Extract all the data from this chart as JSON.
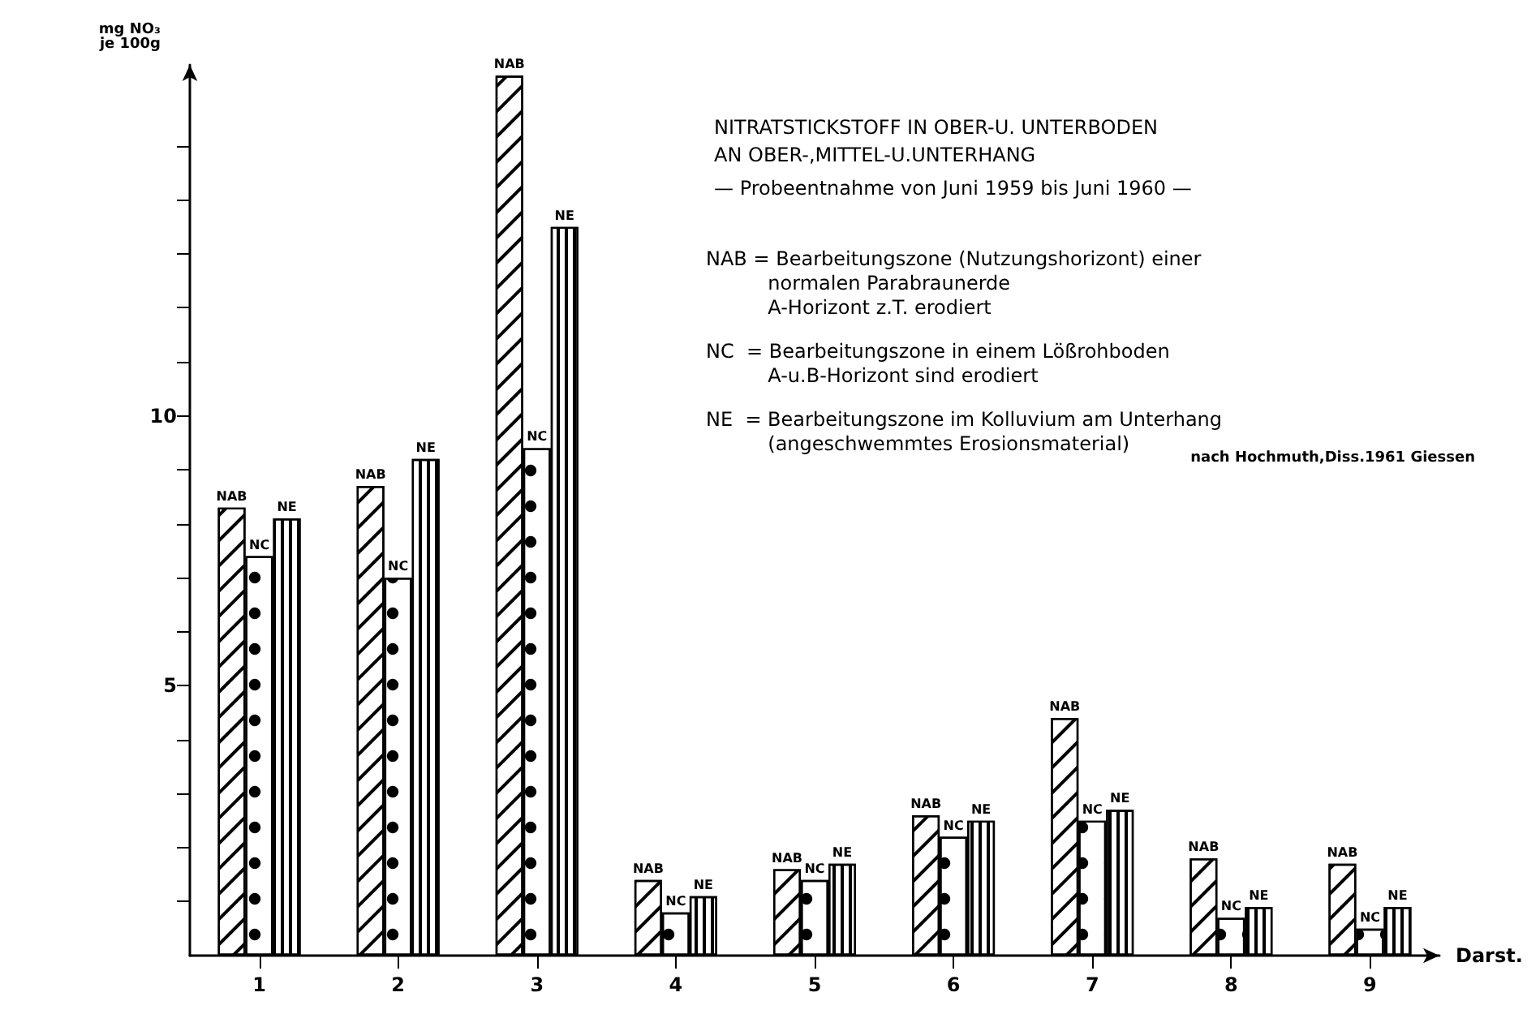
{
  "chart_data": {
    "type": "bar",
    "title": "NITRATSTICKSTOFF IN OBER-U. UNTERBODEN\nAN OBER-,MITTEL-U.UNTERHANG",
    "subtitle": "— Probeentnahme von Juni 1959 bis Juni 1960 —",
    "xlabel": "Darst.",
    "ylabel": "mg NO₃\nje 100g",
    "annotations": [
      "NAB = Bearbeitungszone (Nutzungshorizont) einer\n          normalen Parabraunerde\n          A-Horizont z.T. erodiert",
      "NC  = Bearbeitungszone in einem Lößrohboden\n          A-u.B-Horizont sind erodiert",
      "NE  = Bearbeitungszone im Kolluvium am Unterhang\n          (angeschwemmtes Erosionsmaterial)",
      "nach Hochmuth,Diss.1961 Giessen"
    ],
    "categories": [
      "1",
      "2",
      "3",
      "4",
      "5",
      "6",
      "7",
      "8",
      "9"
    ],
    "series": [
      {
        "name": "NAB",
        "color": "#ffffff",
        "values": [
          8.3,
          8.7,
          16.3,
          1.4,
          1.6,
          2.6,
          4.4,
          1.8,
          1.7
        ]
      },
      {
        "name": "NC",
        "color": "#ffffff",
        "values": [
          7.4,
          7.0,
          9.4,
          0.8,
          1.4,
          2.2,
          2.5,
          0.7,
          0.5
        ]
      },
      {
        "name": "NE",
        "color": "#ffffff",
        "values": [
          8.1,
          9.2,
          13.5,
          1.1,
          1.7,
          2.5,
          2.7,
          0.9,
          0.9
        ]
      }
    ],
    "ylim": [
      0,
      16.5
    ],
    "yticks": [
      {
        "value": 1,
        "label": null
      },
      {
        "value": 2,
        "label": null
      },
      {
        "value": 3,
        "label": null
      },
      {
        "value": 4,
        "label": null
      },
      5,
      {
        "value": 6,
        "label": null
      },
      {
        "value": 7,
        "label": null
      },
      {
        "value": 8,
        "label": null
      },
      {
        "value": 9,
        "label": null
      },
      10,
      {
        "value": 11,
        "label": null
      },
      {
        "value": 12,
        "label": null
      },
      {
        "value": 13,
        "label": null
      },
      {
        "value": 14,
        "label": null
      },
      {
        "value": 15,
        "label": null
      }
    ],
    "grid": false,
    "legend": false
  }
}
